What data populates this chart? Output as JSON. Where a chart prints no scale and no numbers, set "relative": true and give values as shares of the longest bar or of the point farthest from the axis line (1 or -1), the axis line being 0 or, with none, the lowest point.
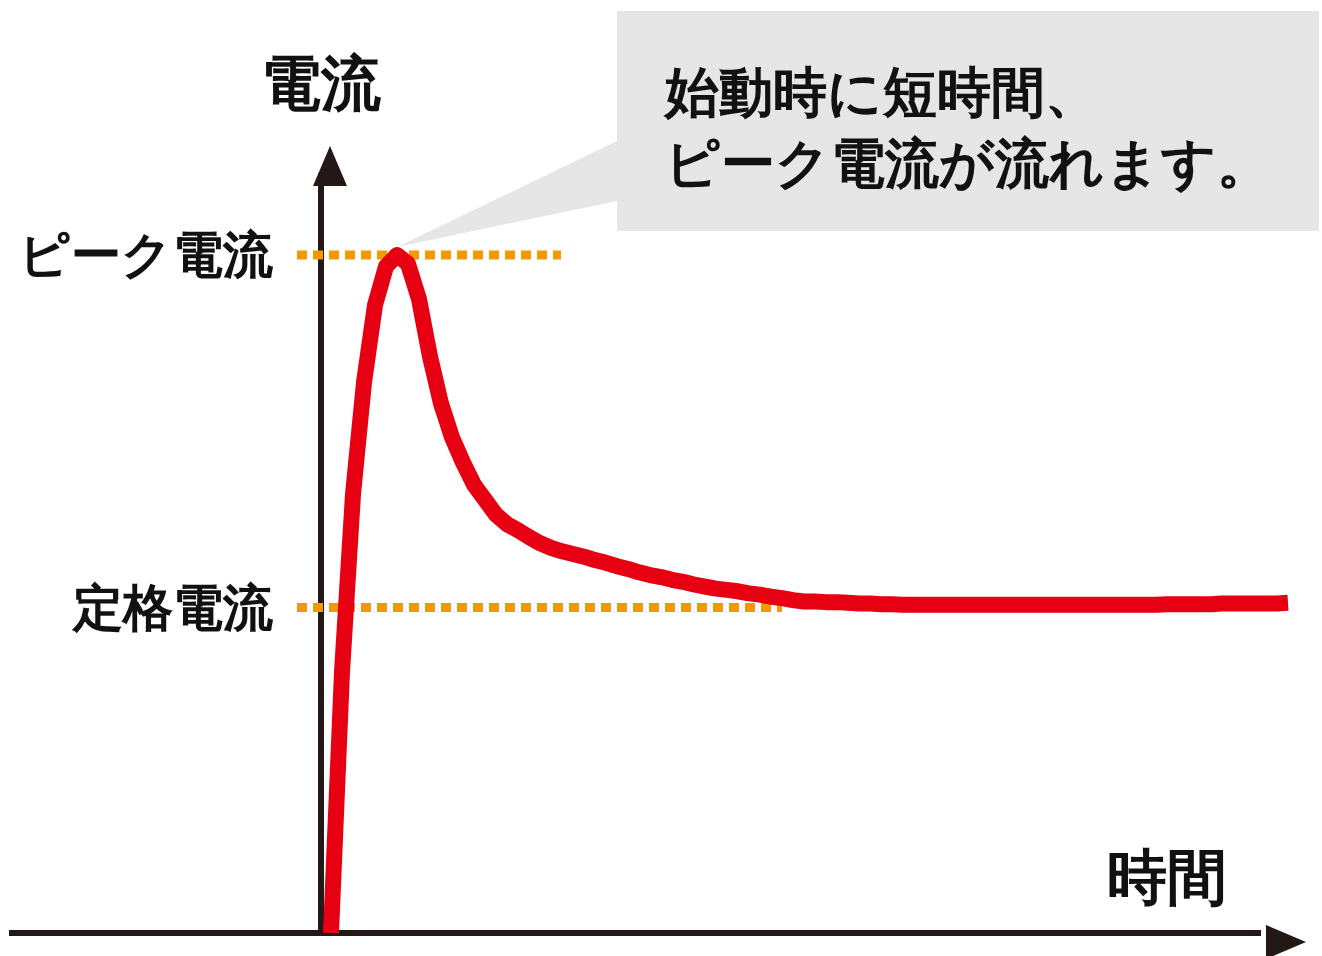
{
  "chart_data": {
    "type": "line",
    "relative": true,
    "xlabel": "時間",
    "ylabel": "電流",
    "categories": [
      null,
      null,
      null,
      null,
      null,
      null,
      null,
      null,
      null,
      null,
      null,
      null,
      null,
      null,
      null,
      null,
      null,
      null,
      null,
      null,
      null,
      null,
      null,
      null,
      null,
      null,
      null,
      null,
      null,
      null,
      null,
      null,
      null,
      null,
      null,
      null,
      null,
      null,
      null,
      null,
      null,
      null,
      null,
      null,
      null,
      null,
      null,
      null,
      null,
      null,
      null,
      null,
      null,
      null,
      null,
      null,
      null,
      null,
      null,
      null,
      null,
      null,
      null,
      null,
      null,
      null,
      null,
      null,
      null,
      null,
      null,
      null,
      null,
      null,
      null,
      null,
      null,
      null,
      null,
      null,
      null,
      null,
      null,
      null,
      null,
      null,
      null,
      null
    ],
    "series": [
      {
        "color": "#e60012",
        "values": [
          0,
          0.385,
          0.647,
          0.812,
          0.926,
          0.983,
          1,
          0.987,
          0.935,
          0.85,
          0.781,
          0.731,
          0.694,
          0.661,
          0.639,
          0.617,
          0.603,
          0.594,
          0.584,
          0.575,
          0.568,
          0.563,
          0.559,
          0.555,
          0.55,
          0.546,
          0.541,
          0.537,
          0.532,
          0.528,
          0.525,
          0.521,
          0.518,
          0.514,
          0.511,
          0.508,
          0.506,
          0.504,
          0.501,
          0.499,
          0.496,
          0.494,
          0.491,
          0.489,
          0.489,
          0.488,
          0.488,
          0.487,
          0.486,
          0.486,
          0.485,
          0.485,
          0.484,
          0.484,
          0.484,
          0.484,
          0.484,
          0.484,
          0.484,
          0.484,
          0.484,
          0.484,
          0.484,
          0.484,
          0.484,
          0.484,
          0.484,
          0.484,
          0.484,
          0.484,
          0.484,
          0.484,
          0.484,
          0.484,
          0.484,
          0.484,
          0.485,
          0.485,
          0.485,
          0.485,
          0.485,
          0.486,
          0.486,
          0.486,
          0.486,
          0.486,
          0.486,
          0.487
        ]
      }
    ],
    "ref_lines": [
      {
        "axis": "y",
        "value": 1,
        "label": "ピーク電流",
        "color": "#f39800",
        "line_style": "dotted"
      },
      {
        "axis": "y",
        "value": 0.48,
        "label": "定格電流",
        "color": "#f39800",
        "line_style": "dotted"
      }
    ],
    "annotations": [
      "始動時に短時間、ピーク電流が流れます。"
    ]
  }
}
